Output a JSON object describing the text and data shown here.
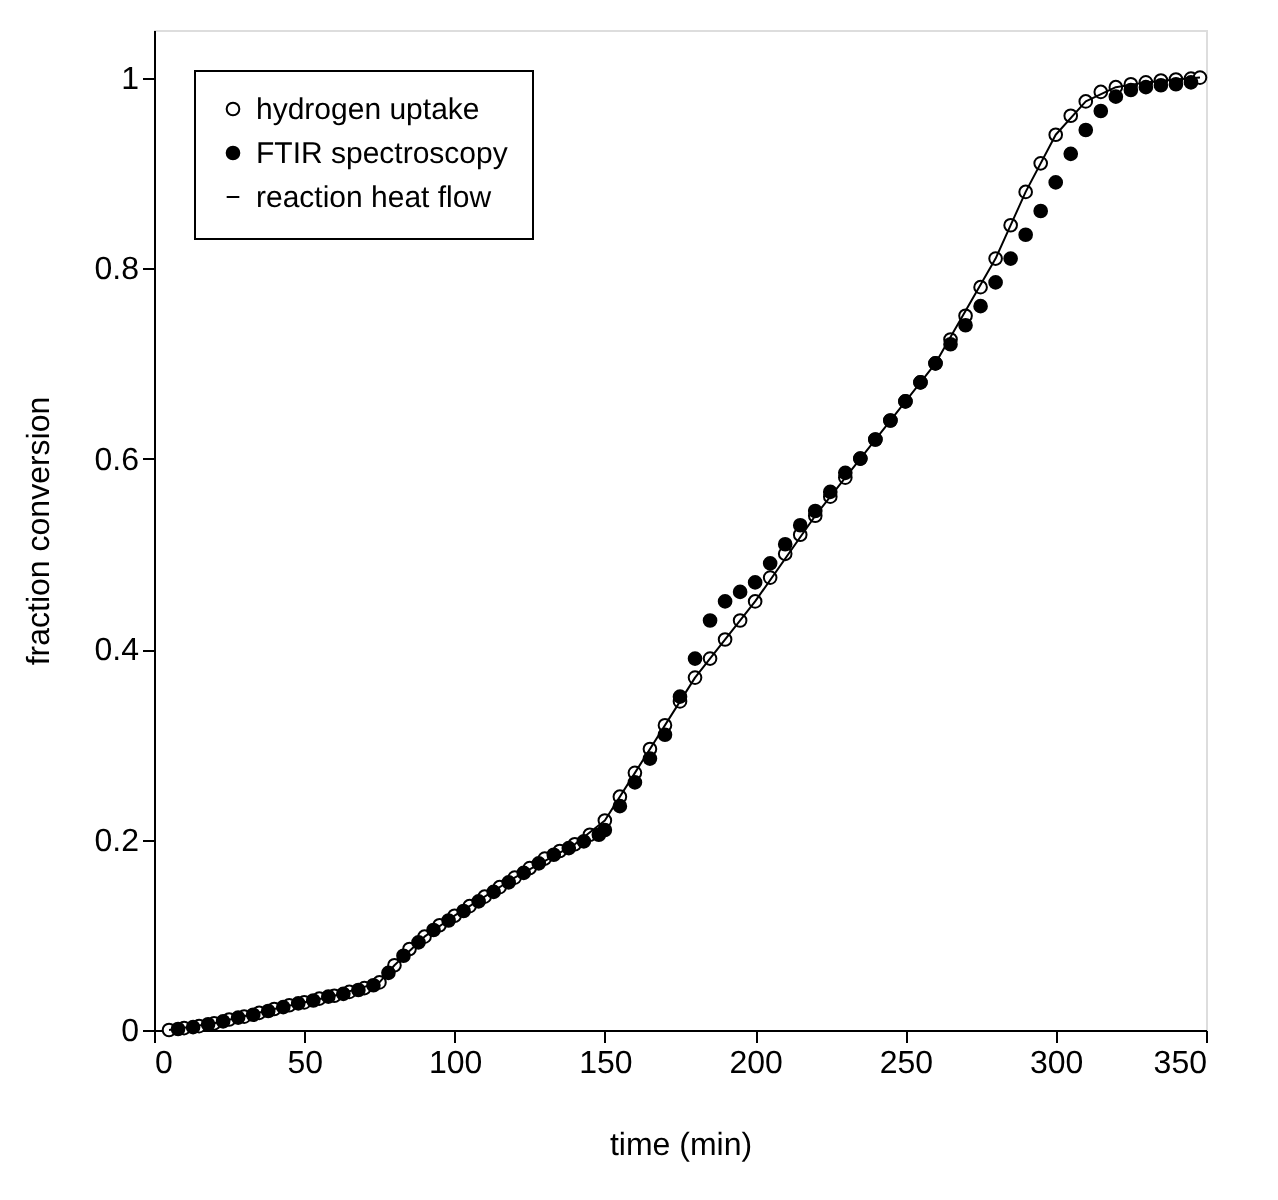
{
  "chart_data": {
    "type": "scatter",
    "xlabel": "time (min)",
    "ylabel": "fraction conversion",
    "xlim": [
      0,
      350
    ],
    "ylim": [
      0,
      1.05
    ],
    "xticks": [
      0,
      50,
      100,
      150,
      200,
      250,
      300,
      350
    ],
    "yticks": [
      0,
      0.2,
      0.4,
      0.6,
      0.8,
      1
    ],
    "grid": false,
    "legend": "top left",
    "line_style": "solid",
    "series": [
      {
        "name": "hydrogen uptake",
        "marker": "circle",
        "color": "#000000",
        "x": [
          5,
          10,
          15,
          20,
          25,
          30,
          35,
          40,
          45,
          50,
          55,
          60,
          65,
          70,
          75,
          80,
          85,
          90,
          95,
          100,
          105,
          110,
          115,
          120,
          125,
          130,
          135,
          140,
          145,
          150,
          155,
          160,
          165,
          170,
          175,
          180,
          185,
          190,
          195,
          200,
          205,
          210,
          215,
          220,
          225,
          230,
          235,
          240,
          245,
          250,
          255,
          260,
          265,
          270,
          275,
          280,
          285,
          290,
          295,
          300,
          305,
          310,
          315,
          320,
          325,
          330,
          335,
          340,
          345,
          348
        ],
        "values": [
          0,
          0.002,
          0.004,
          0.007,
          0.011,
          0.014,
          0.018,
          0.022,
          0.026,
          0.029,
          0.033,
          0.036,
          0.04,
          0.044,
          0.05,
          0.068,
          0.085,
          0.098,
          0.11,
          0.12,
          0.13,
          0.14,
          0.15,
          0.16,
          0.17,
          0.18,
          0.188,
          0.195,
          0.205,
          0.22,
          0.245,
          0.27,
          0.295,
          0.32,
          0.345,
          0.37,
          0.39,
          0.41,
          0.43,
          0.45,
          0.475,
          0.5,
          0.52,
          0.54,
          0.56,
          0.58,
          0.6,
          0.62,
          0.64,
          0.66,
          0.68,
          0.7,
          0.725,
          0.75,
          0.78,
          0.81,
          0.845,
          0.88,
          0.91,
          0.94,
          0.96,
          0.975,
          0.985,
          0.99,
          0.993,
          0.995,
          0.997,
          0.998,
          0.999,
          1.0
        ]
      },
      {
        "name": "FTIR spectroscopy",
        "marker": "circle",
        "color": "#000000",
        "x": [
          8,
          13,
          18,
          23,
          28,
          33,
          38,
          43,
          48,
          53,
          58,
          63,
          68,
          73,
          78,
          83,
          88,
          93,
          98,
          103,
          108,
          113,
          118,
          123,
          128,
          133,
          138,
          143,
          148,
          150,
          155,
          160,
          165,
          170,
          175,
          180,
          185,
          190,
          195,
          200,
          205,
          210,
          215,
          220,
          225,
          230,
          235,
          240,
          245,
          250,
          255,
          260,
          265,
          270,
          275,
          280,
          285,
          290,
          295,
          300,
          305,
          310,
          315,
          320,
          325,
          330,
          335,
          340,
          345
        ],
        "values": [
          0.001,
          0.003,
          0.006,
          0.009,
          0.013,
          0.016,
          0.02,
          0.024,
          0.028,
          0.031,
          0.035,
          0.038,
          0.042,
          0.047,
          0.06,
          0.078,
          0.092,
          0.105,
          0.115,
          0.125,
          0.135,
          0.145,
          0.155,
          0.165,
          0.175,
          0.184,
          0.191,
          0.198,
          0.205,
          0.21,
          0.235,
          0.26,
          0.285,
          0.31,
          0.35,
          0.39,
          0.43,
          0.45,
          0.46,
          0.47,
          0.49,
          0.51,
          0.53,
          0.545,
          0.565,
          0.585,
          0.6,
          0.62,
          0.64,
          0.66,
          0.68,
          0.7,
          0.72,
          0.74,
          0.76,
          0.785,
          0.81,
          0.835,
          0.86,
          0.89,
          0.92,
          0.945,
          0.965,
          0.98,
          0.987,
          0.99,
          0.992,
          0.993,
          0.995
        ]
      },
      {
        "name": "reaction heat flow",
        "type": "line",
        "marker": "none",
        "color": "#000000",
        "x": [
          5,
          20,
          40,
          60,
          75,
          80,
          90,
          100,
          120,
          140,
          150,
          160,
          180,
          200,
          220,
          240,
          260,
          280,
          290,
          300,
          310,
          320,
          330,
          340,
          348
        ],
        "values": [
          0,
          0.007,
          0.022,
          0.036,
          0.05,
          0.068,
          0.098,
          0.12,
          0.16,
          0.195,
          0.22,
          0.27,
          0.37,
          0.45,
          0.54,
          0.62,
          0.7,
          0.81,
          0.88,
          0.94,
          0.975,
          0.99,
          0.995,
          0.998,
          1.0
        ]
      }
    ]
  }
}
